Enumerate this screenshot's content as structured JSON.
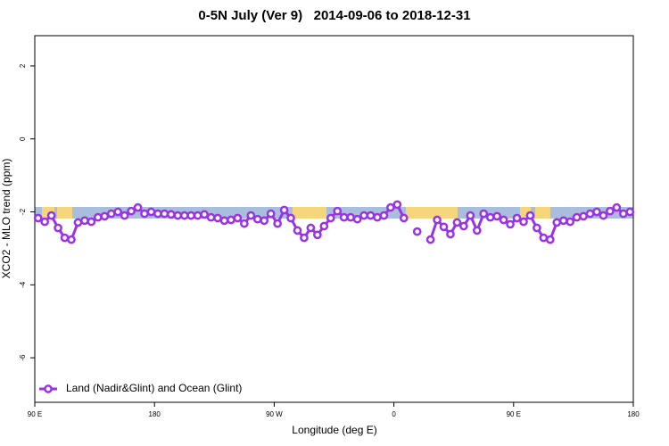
{
  "chart_data": {
    "type": "line",
    "title": "0-5N July (Ver 9)   2014-09-06 to 2018-12-31",
    "x_label": "Longitude (deg E)",
    "y_label": "XCO2 - MLO trend (ppm)",
    "x": [
      92.5,
      97.5,
      102.5,
      107.5,
      112.5,
      117.5,
      122.5,
      127.5,
      132.5,
      137.5,
      142.5,
      147.5,
      152.5,
      157.5,
      162.5,
      167.5,
      172.5,
      177.5,
      182.5,
      187.5,
      192.5,
      197.5,
      202.5,
      207.5,
      212.5,
      217.5,
      222.5,
      227.5,
      232.5,
      237.5,
      242.5,
      247.5,
      252.5,
      257.5,
      262.5,
      267.5,
      272.5,
      277.5,
      282.5,
      287.5,
      292.5,
      297.5,
      302.5,
      307.5,
      312.5,
      317.5,
      322.5,
      327.5,
      332.5,
      337.5,
      342.5,
      347.5,
      352.5,
      357.5,
      362.5,
      367.5,
      372.5,
      377.5,
      382.5,
      387.5,
      392.5,
      397.5,
      402.5,
      407.5,
      412.5,
      417.5,
      422.5,
      427.5,
      432.5,
      437.5,
      442.5,
      447.5,
      452.5,
      457.5,
      462.5,
      467.5,
      472.5,
      477.5,
      482.5,
      487.5,
      492.5,
      497.5,
      502.5,
      507.5,
      512.5,
      517.5,
      522.5,
      527.5,
      532.5,
      537.5
    ],
    "series": [
      {
        "name": "Land (Nadir&Glint) and Ocean (Glint)",
        "color": "#9a32e6",
        "values": [
          -2.17,
          -2.27,
          -2.1,
          -2.44,
          -2.71,
          -2.76,
          -2.29,
          -2.24,
          -2.27,
          -2.15,
          -2.12,
          -2.05,
          -2.0,
          -2.1,
          -1.98,
          -1.88,
          -2.05,
          -2.0,
          -2.05,
          -2.05,
          -2.07,
          -2.1,
          -2.1,
          -2.1,
          -2.1,
          -2.07,
          -2.15,
          -2.17,
          -2.24,
          -2.22,
          -2.17,
          -2.32,
          -2.1,
          -2.2,
          -2.24,
          -2.05,
          -2.32,
          -1.95,
          -2.17,
          -2.51,
          -2.71,
          -2.44,
          -2.63,
          -2.39,
          -2.17,
          -1.98,
          -2.15,
          -2.15,
          -2.2,
          -2.1,
          -2.1,
          -2.15,
          -2.1,
          -1.88,
          -1.8,
          -2.17,
          null,
          -2.54,
          null,
          -2.76,
          -2.22,
          -2.41,
          -2.61,
          -2.29,
          -2.39,
          -2.1,
          -2.51,
          -2.05,
          -2.15,
          -2.12,
          -2.22,
          -2.34,
          -2.17,
          -2.27,
          -2.1,
          -2.44,
          -2.71,
          -2.76,
          -2.29,
          -2.24,
          -2.27,
          -2.15,
          -2.12,
          -2.05,
          -2.0,
          -2.1,
          -1.98,
          -1.88,
          -2.05,
          -2.0
        ]
      }
    ],
    "xlim": [
      90,
      540
    ],
    "xticks": [
      {
        "value": 90,
        "label": "90 E"
      },
      180,
      {
        "value": 270,
        "label": "90 W"
      },
      {
        "value": 360,
        "label": "0"
      },
      {
        "value": 450,
        "label": "90 E"
      },
      {
        "value": 540,
        "label": "180"
      }
    ],
    "ylim": [
      -7.22,
      2.83
    ],
    "yticks": [
      2,
      0,
      -2,
      -4,
      -6
    ],
    "grid": false,
    "legend": "bottom-left"
  }
}
